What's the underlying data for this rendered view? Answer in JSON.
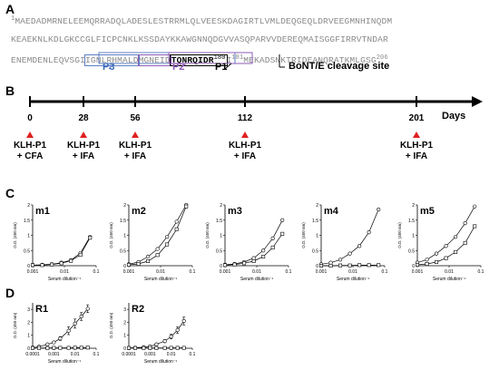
{
  "panels": {
    "a": "A",
    "b": "B",
    "c": "C",
    "d": "D"
  },
  "sequence": {
    "start_num": "1",
    "line1": "MAEDADMRNELEEMQRRADQLADESLESTRRMLQLVEESKDAGIRTLVMLDEQGEQLDRVEEGMNHINQDM",
    "line2": "KEAEKNLKDLGKCCGLFICPCNKLKSSDAYKKAWGNNQDGVVASQPARVVDEREQMAISGGFIRRVTNDAR",
    "line3_pre": "ENEMDENLEQVSGI",
    "line3_p3box": "IGNLRHMALD",
    "line3_p2box": "MGNEID",
    "line3_p1box": "TQNRQIDR",
    "line3_p1num": "180",
    "line3_mid": "I",
    "line3_num181": "181",
    "line3_post1": "MEKAD",
    "line3_post2": "SNKTRIDEANQRATKMLGSG",
    "end_num": "206"
  },
  "annotations": {
    "p3": "P3",
    "p2": "P2",
    "p1": "P1",
    "cleavage": "BoNT/E cleavage site"
  },
  "timeline": {
    "axis_label": "Days",
    "days": [
      "0",
      "28",
      "56",
      "112",
      "201"
    ],
    "immunizations": [
      {
        "line1": "KLH-P1",
        "line2": "+ CFA"
      },
      {
        "line1": "KLH-P1",
        "line2": "+ IFA"
      },
      {
        "line1": "KLH-P1",
        "line2": "+ IFA"
      },
      {
        "line1": "KLH-P1",
        "line2": "+ IFA"
      },
      {
        "line1": "KLH-P1",
        "line2": "+ IFA"
      }
    ],
    "marker_color": "#e02020"
  },
  "plot_text": {
    "ylabel": "O.D. (450 nm)",
    "xlabel": "Serum dilution⁻¹"
  },
  "chart_data": [
    {
      "type": "line",
      "panel": "C",
      "title": "m1",
      "xscale": "log",
      "xlim": [
        0.001,
        0.1
      ],
      "ylim": [
        0,
        2
      ],
      "xticks": [
        "0.001",
        "0.01",
        "0.1"
      ],
      "yticks": [
        "0",
        "0.5",
        "1",
        "1.5",
        "2"
      ],
      "series": [
        {
          "marker": "circle",
          "x": [
            0.001,
            0.002,
            0.004,
            0.008,
            0.016,
            0.032,
            0.064
          ],
          "y": [
            0.02,
            0.03,
            0.05,
            0.1,
            0.18,
            0.42,
            0.95
          ]
        },
        {
          "marker": "square",
          "x": [
            0.001,
            0.002,
            0.004,
            0.008,
            0.016,
            0.032,
            0.064
          ],
          "y": [
            0.02,
            0.02,
            0.04,
            0.08,
            0.16,
            0.36,
            0.92
          ]
        }
      ]
    },
    {
      "type": "line",
      "panel": "C",
      "title": "m2",
      "xscale": "log",
      "xlim": [
        0.001,
        0.1
      ],
      "ylim": [
        0,
        2
      ],
      "xticks": [
        "0.001",
        "0.01",
        "0.1"
      ],
      "yticks": [
        "0",
        "0.5",
        "1",
        "1.5",
        "2"
      ],
      "series": [
        {
          "marker": "circle",
          "x": [
            0.001,
            0.002,
            0.004,
            0.008,
            0.016,
            0.032,
            0.064
          ],
          "y": [
            0.05,
            0.12,
            0.3,
            0.55,
            0.95,
            1.45,
            2.0
          ]
        },
        {
          "marker": "square",
          "x": [
            0.001,
            0.002,
            0.004,
            0.008,
            0.016,
            0.032,
            0.064
          ],
          "y": [
            0.03,
            0.06,
            0.15,
            0.35,
            0.7,
            1.2,
            1.95
          ]
        }
      ]
    },
    {
      "type": "line",
      "panel": "C",
      "title": "m3",
      "xscale": "log",
      "xlim": [
        0.001,
        0.1
      ],
      "ylim": [
        0,
        2
      ],
      "xticks": [
        "0.001",
        "0.01",
        "0.1"
      ],
      "yticks": [
        "0",
        "0.5",
        "1",
        "1.5",
        "2"
      ],
      "series": [
        {
          "marker": "circle",
          "x": [
            0.001,
            0.002,
            0.004,
            0.008,
            0.016,
            0.032,
            0.064
          ],
          "y": [
            0.03,
            0.06,
            0.12,
            0.25,
            0.5,
            0.9,
            1.5
          ]
        },
        {
          "marker": "square",
          "x": [
            0.001,
            0.002,
            0.004,
            0.008,
            0.016,
            0.032,
            0.064
          ],
          "y": [
            0.02,
            0.04,
            0.08,
            0.15,
            0.3,
            0.6,
            1.05
          ]
        }
      ]
    },
    {
      "type": "line",
      "panel": "C",
      "title": "m4",
      "xscale": "log",
      "xlim": [
        0.001,
        0.1
      ],
      "ylim": [
        0,
        2
      ],
      "xticks": [
        "0.001",
        "0.01",
        "0.1"
      ],
      "yticks": [
        "0",
        "0.5",
        "1",
        "1.5",
        "2"
      ],
      "series": [
        {
          "marker": "circle",
          "x": [
            0.001,
            0.002,
            0.004,
            0.008,
            0.016,
            0.032,
            0.064
          ],
          "y": [
            0.05,
            0.1,
            0.2,
            0.4,
            0.65,
            1.1,
            1.85
          ]
        },
        {
          "marker": "square",
          "x": [
            0.001,
            0.002,
            0.004,
            0.008,
            0.016,
            0.032,
            0.064
          ],
          "y": [
            0.0,
            0.0,
            0.01,
            0.01,
            0.02,
            0.02,
            0.02
          ]
        }
      ]
    },
    {
      "type": "line",
      "panel": "C",
      "title": "m5",
      "xscale": "log",
      "xlim": [
        0.001,
        0.1
      ],
      "ylim": [
        0,
        2
      ],
      "xticks": [
        "0.001",
        "0.01",
        "0.1"
      ],
      "yticks": [
        "0",
        "0.5",
        "1",
        "1.5",
        "2"
      ],
      "series": [
        {
          "marker": "circle",
          "x": [
            0.001,
            0.002,
            0.004,
            0.008,
            0.016,
            0.032,
            0.064
          ],
          "y": [
            0.1,
            0.2,
            0.4,
            0.65,
            0.95,
            1.4,
            1.95
          ]
        },
        {
          "marker": "square",
          "x": [
            0.001,
            0.002,
            0.004,
            0.008,
            0.016,
            0.032,
            0.064
          ],
          "y": [
            0.03,
            0.06,
            0.12,
            0.25,
            0.45,
            0.75,
            1.3
          ]
        }
      ]
    },
    {
      "type": "line",
      "panel": "D",
      "title": "R1",
      "xscale": "log",
      "xlim": [
        0.0001,
        0.1
      ],
      "ylim": [
        0,
        3.5
      ],
      "xticks": [
        "0.0001",
        "0.001",
        "0.01",
        "0.1"
      ],
      "yticks": [
        "0",
        "1",
        "2",
        "3"
      ],
      "series": [
        {
          "marker": "circle",
          "x": [
            0.0001,
            0.0002,
            0.0005,
            0.001,
            0.002,
            0.005,
            0.01,
            0.02,
            0.04
          ],
          "y": [
            0.05,
            0.12,
            0.3,
            0.45,
            0.75,
            1.35,
            1.9,
            2.45,
            3.05
          ],
          "error": [
            0.02,
            0.03,
            0.05,
            0.08,
            0.15,
            0.3,
            0.35,
            0.3,
            0.3
          ]
        },
        {
          "marker": "square",
          "x": [
            0.0001,
            0.0002,
            0.0005,
            0.001,
            0.002,
            0.005,
            0.01,
            0.02,
            0.04
          ],
          "y": [
            0.02,
            0.02,
            0.02,
            0.03,
            0.03,
            0.03,
            0.04,
            0.04,
            0.05
          ]
        }
      ]
    },
    {
      "type": "line",
      "panel": "D",
      "title": "R2",
      "xscale": "log",
      "xlim": [
        0.0001,
        0.1
      ],
      "ylim": [
        0,
        3.5
      ],
      "xticks": [
        "0.0001",
        "0.001",
        "0.01",
        "0.1"
      ],
      "yticks": [
        "0",
        "1",
        "2",
        "3"
      ],
      "series": [
        {
          "marker": "circle",
          "x": [
            0.0001,
            0.0002,
            0.0005,
            0.001,
            0.002,
            0.005,
            0.01,
            0.02,
            0.04
          ],
          "y": [
            0.02,
            0.04,
            0.08,
            0.15,
            0.3,
            0.55,
            0.9,
            1.4,
            2.1
          ],
          "error": [
            0.01,
            0.02,
            0.03,
            0.05,
            0.08,
            0.12,
            0.18,
            0.25,
            0.3
          ]
        },
        {
          "marker": "square",
          "x": [
            0.0001,
            0.0002,
            0.0005,
            0.001,
            0.002,
            0.005,
            0.01,
            0.02,
            0.04
          ],
          "y": [
            0.02,
            0.02,
            0.02,
            0.02,
            0.02,
            0.02,
            0.03,
            0.03,
            0.03
          ]
        }
      ]
    }
  ]
}
